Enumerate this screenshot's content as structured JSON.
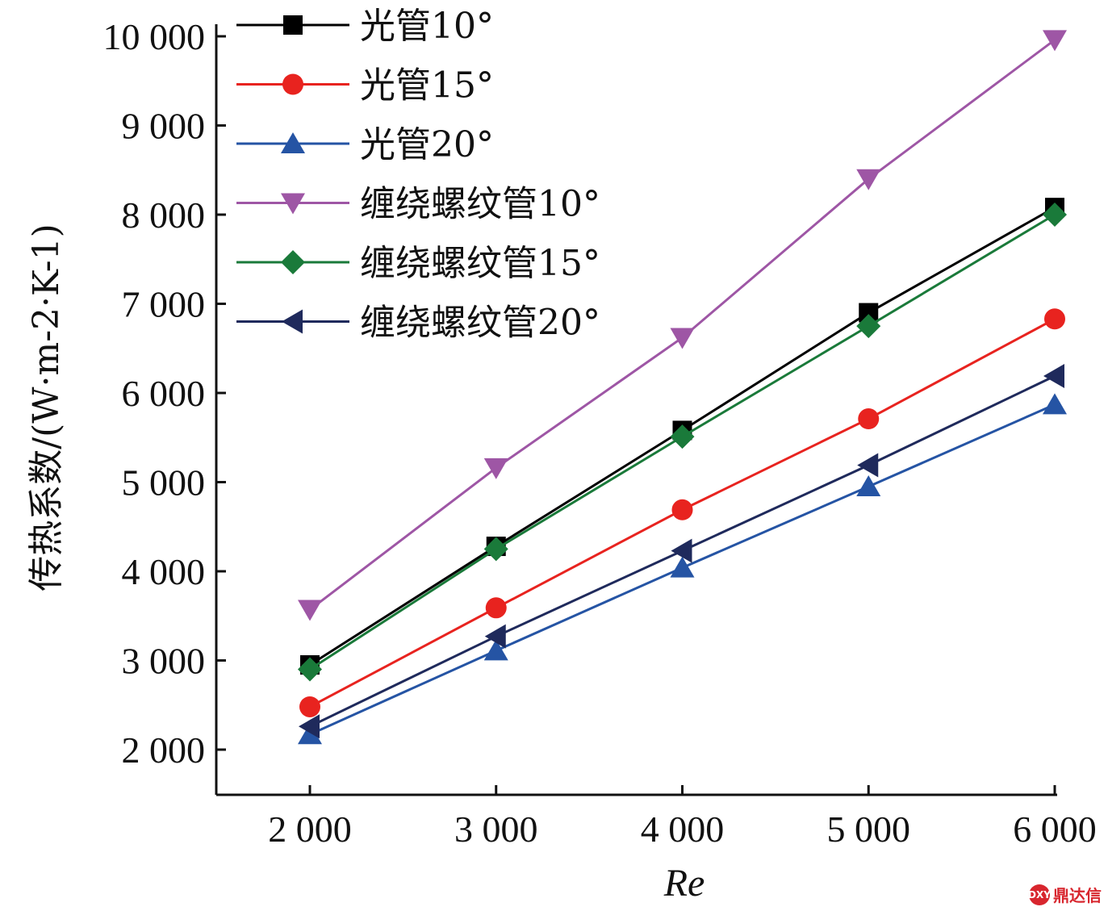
{
  "chart_data": {
    "type": "line",
    "title": "",
    "xlabel": "Re",
    "ylabel": "传热系数/(W·m-2·K-1)",
    "x": [
      2000,
      3000,
      4000,
      5000,
      6000
    ],
    "x_tick_labels": [
      "2 000",
      "3 000",
      "4 000",
      "5 000",
      "6 000"
    ],
    "y_tick_values": [
      2000,
      3000,
      4000,
      5000,
      6000,
      7000,
      8000,
      9000,
      10000
    ],
    "y_tick_labels": [
      "2 000",
      "3 000",
      "4 000",
      "5 000",
      "6 000",
      "7 000",
      "8 000",
      "9 000",
      "10 000"
    ],
    "xlim": [
      1500,
      6000
    ],
    "ylim": [
      1500,
      10000
    ],
    "grid": false,
    "legend_position": "top-left",
    "series": [
      {
        "name": "光管10°",
        "color": "#000000",
        "marker": "square",
        "values": [
          2950,
          4280,
          5580,
          6900,
          8080
        ]
      },
      {
        "name": "光管15°",
        "color": "#e8231f",
        "marker": "circle",
        "values": [
          2480,
          3590,
          4690,
          5710,
          6830
        ]
      },
      {
        "name": "光管20°",
        "color": "#2554a4",
        "marker": "triangle-up",
        "values": [
          2170,
          3110,
          4040,
          4950,
          5870
        ]
      },
      {
        "name": "缠绕螺纹管10°",
        "color": "#9e56a5",
        "marker": "triangle-down",
        "values": [
          3570,
          5160,
          6620,
          8400,
          9960
        ]
      },
      {
        "name": "缠绕螺纹管15°",
        "color": "#1a7a3a",
        "marker": "diamond",
        "values": [
          2900,
          4250,
          5510,
          6750,
          8000
        ]
      },
      {
        "name": "缠绕螺纹管20°",
        "color": "#1f2a5c",
        "marker": "triangle-left",
        "values": [
          2260,
          3270,
          4230,
          5190,
          6190
        ]
      }
    ]
  },
  "watermark": {
    "logo_text": "DXY",
    "text": "鼎达信"
  }
}
